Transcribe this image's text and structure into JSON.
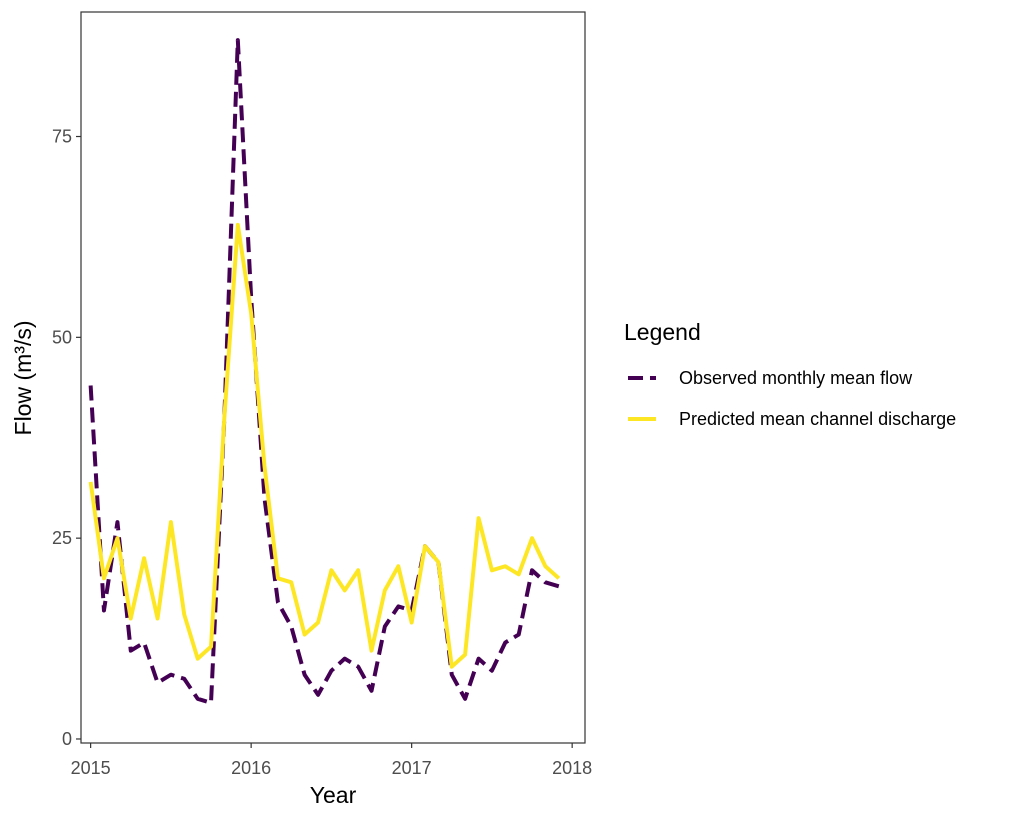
{
  "chart_data": {
    "type": "line",
    "title": "",
    "xlabel": "Year",
    "ylabel": "Flow (m³/s)",
    "xlim": [
      2014.94,
      2018.08
    ],
    "ylim": [
      -0.5,
      90.5
    ],
    "x_ticks": [
      2015,
      2016,
      2017,
      2018
    ],
    "x_tick_labels": [
      "2015",
      "2016",
      "2017",
      "2018"
    ],
    "y_ticks": [
      0,
      25,
      50,
      75
    ],
    "y_tick_labels": [
      "0",
      "25",
      "50",
      "75"
    ],
    "grid": false,
    "legend": {
      "title": "Legend",
      "position": "right"
    },
    "x": [
      2015.0,
      2015.083,
      2015.167,
      2015.25,
      2015.333,
      2015.417,
      2015.5,
      2015.583,
      2015.667,
      2015.75,
      2015.833,
      2015.917,
      2016.0,
      2016.083,
      2016.167,
      2016.25,
      2016.333,
      2016.417,
      2016.5,
      2016.583,
      2016.667,
      2016.75,
      2016.833,
      2016.917,
      2017.0,
      2017.083,
      2017.167,
      2017.25,
      2017.333,
      2017.417,
      2017.5,
      2017.583,
      2017.667,
      2017.75,
      2017.833,
      2017.917
    ],
    "series": [
      {
        "name": "Observed monthly mean flow",
        "color": "#440154",
        "dash": "dashed",
        "values": [
          44.0,
          16.0,
          27.0,
          11.0,
          12.0,
          7.0,
          8.0,
          7.5,
          5.0,
          4.5,
          40.0,
          87.0,
          55.0,
          30.0,
          17.0,
          14.0,
          8.0,
          5.5,
          8.5,
          10.0,
          9.0,
          6.0,
          14.0,
          16.5,
          16.0,
          24.0,
          22.0,
          8.0,
          5.0,
          10.0,
          8.5,
          12.0,
          13.0,
          21.0,
          19.5,
          19.0
        ]
      },
      {
        "name": "Predicted mean channel discharge",
        "color": "#FDE725",
        "dash": "solid",
        "values": [
          32.0,
          20.0,
          25.0,
          15.0,
          22.5,
          15.0,
          27.0,
          15.5,
          10.0,
          11.5,
          40.0,
          64.0,
          53.0,
          34.0,
          20.0,
          19.5,
          13.0,
          14.5,
          21.0,
          18.5,
          21.0,
          11.0,
          18.5,
          21.5,
          14.5,
          24.0,
          22.0,
          9.0,
          10.5,
          27.5,
          21.0,
          21.5,
          20.5,
          25.0,
          21.5,
          20.0
        ]
      }
    ]
  }
}
